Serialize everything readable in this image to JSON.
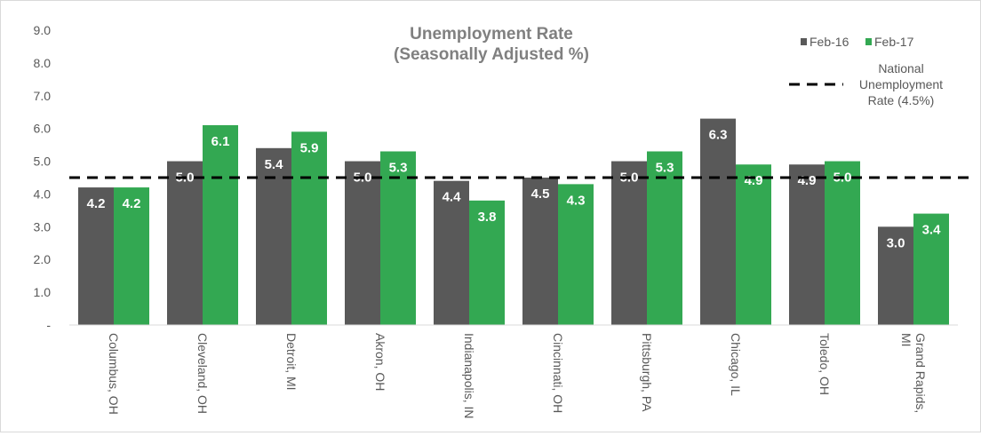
{
  "chart_data": {
    "type": "bar",
    "title": "Unemployment Rate",
    "subtitle": "(Seasonally Adjusted %)",
    "categories": [
      "Columbus, OH",
      "Cleveland, OH",
      "Detroit, MI",
      "Akron, OH",
      "Indianapolis, IN",
      "Cincinnati, OH",
      "Pittsburgh, PA",
      "Chicago, IL",
      "Toledo, OH",
      "Grand Rapids, MI"
    ],
    "category_lines": [
      [
        "Columbus, OH"
      ],
      [
        "Cleveland, OH"
      ],
      [
        "Detroit, MI"
      ],
      [
        "Akron, OH"
      ],
      [
        "Indianapolis, IN"
      ],
      [
        "Cincinnati, OH"
      ],
      [
        "Pittsburgh, PA"
      ],
      [
        "Chicago, IL"
      ],
      [
        "Toledo, OH"
      ],
      [
        "Grand Rapids,",
        "MI"
      ]
    ],
    "series": [
      {
        "name": "Feb-16",
        "color": "#595959",
        "values": [
          4.2,
          5.0,
          5.4,
          5.0,
          4.4,
          4.5,
          5.0,
          6.3,
          4.9,
          3.0
        ]
      },
      {
        "name": "Feb-17",
        "color": "#33a852",
        "values": [
          4.2,
          6.1,
          5.9,
          5.3,
          3.8,
          4.3,
          5.3,
          4.9,
          5.0,
          3.4
        ]
      }
    ],
    "ylim": [
      0,
      9
    ],
    "yticks": [
      "-",
      "1.0",
      "2.0",
      "3.0",
      "4.0",
      "5.0",
      "6.0",
      "7.0",
      "8.0",
      "9.0"
    ],
    "ytick_values": [
      0,
      1,
      2,
      3,
      4,
      5,
      6,
      7,
      8,
      9
    ],
    "grid": false,
    "legend_position": "top-right",
    "reference_line": {
      "value": 4.5,
      "label_lines": [
        "National",
        "Unemployment",
        "Rate (4.5%)"
      ],
      "style": "dashed",
      "color": "#000000"
    }
  }
}
